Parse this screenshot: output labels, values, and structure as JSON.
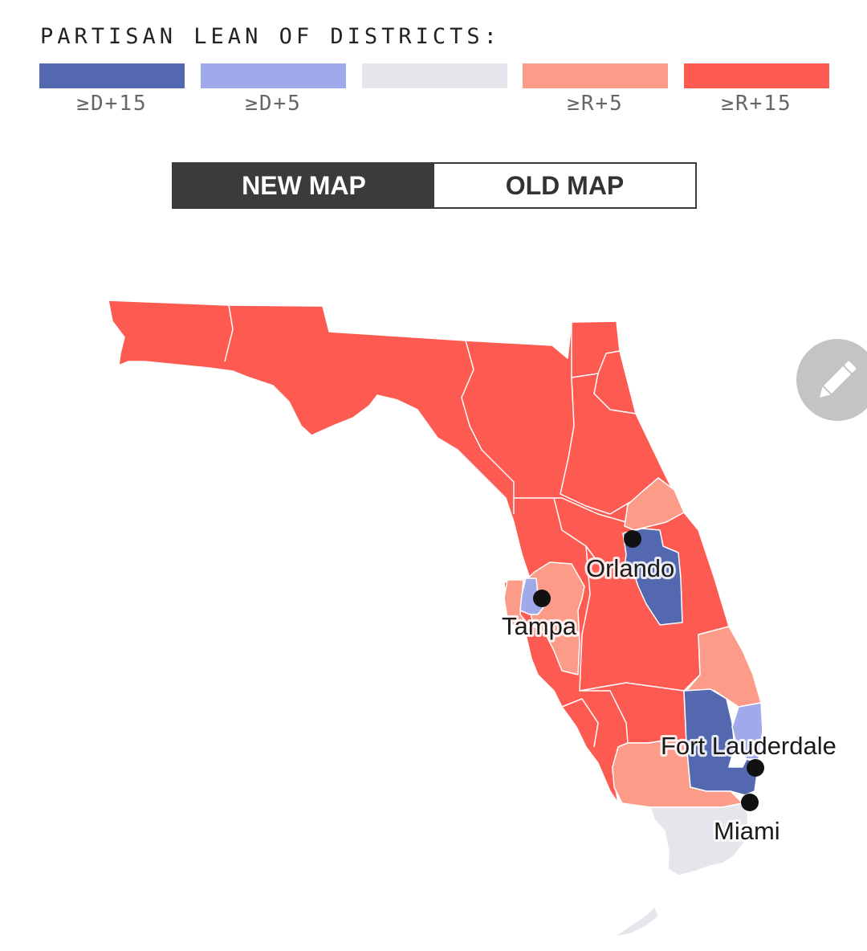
{
  "legend": {
    "title": "PARTISAN LEAN OF DISTRICTS:",
    "items": [
      {
        "label": "≥D+15",
        "color": "#5468b0"
      },
      {
        "label": "≥D+5",
        "color": "#a0aaea"
      },
      {
        "label": "",
        "color": "#e8e4eb"
      },
      {
        "label": "≥R+5",
        "color": "#fc9b88"
      },
      {
        "label": "≥R+15",
        "color": "#fd5b52"
      }
    ]
  },
  "toggle": {
    "new_label": "NEW MAP",
    "old_label": "OLD MAP",
    "active": "new"
  },
  "edit": {
    "icon": "pencil-icon"
  },
  "map": {
    "cities": [
      {
        "name": "Orlando"
      },
      {
        "name": "Tampa"
      },
      {
        "name": "Fort Lauderdale"
      },
      {
        "name": "Miami"
      }
    ]
  }
}
